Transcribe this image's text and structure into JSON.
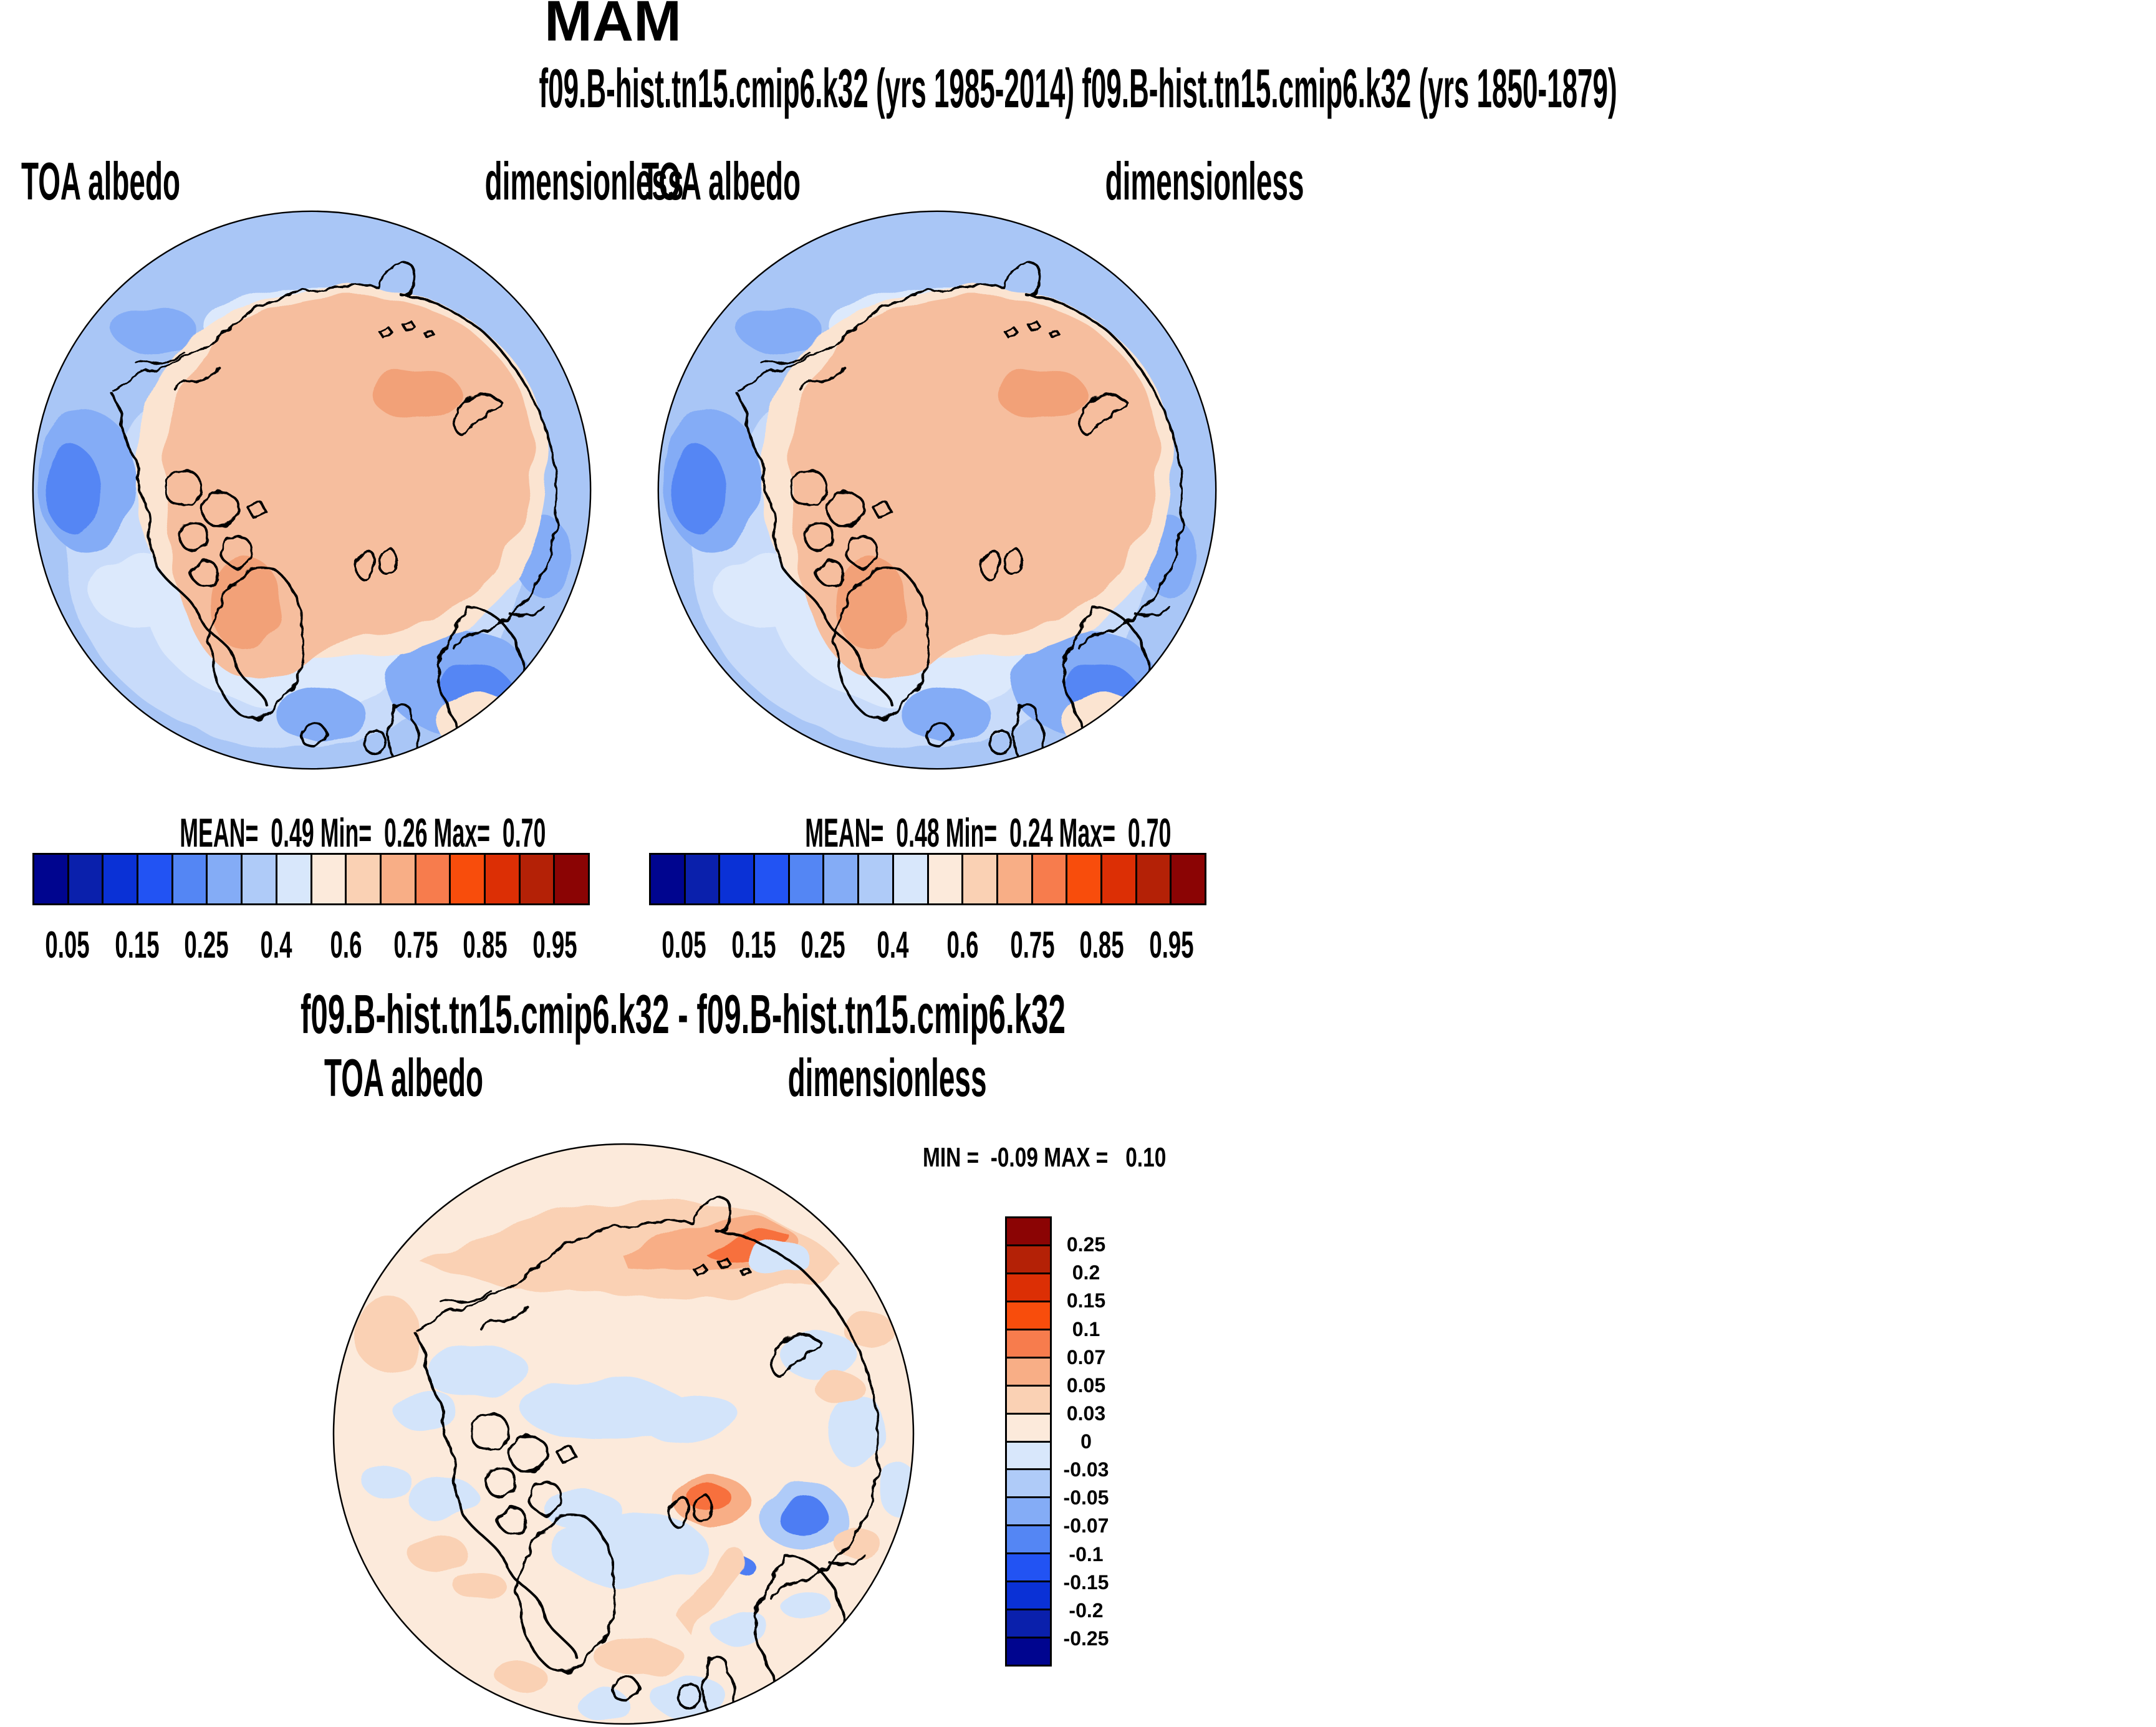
{
  "figure": {
    "season_title": "MAM",
    "subtitle": "f09.B-hist.tn15.cmip6.k32 (yrs 1985-2014) f09.B-hist.tn15.cmip6.k32 (yrs 1850-1879)",
    "diff_title": "f09.B-hist.tn15.cmip6.k32 - f09.B-hist.tn15.cmip6.k32"
  },
  "panels": {
    "case1": {
      "variable": "TOA albedo",
      "units": "dimensionless",
      "stats": "MEAN=  0.49 Min=  0.26 Max=  0.70",
      "mean": 0.49,
      "min": 0.26,
      "max": 0.7
    },
    "case2": {
      "variable": "TOA albedo",
      "units": "dimensionless",
      "stats": "MEAN=  0.48 Min=  0.24 Max=  0.70",
      "mean": 0.48,
      "min": 0.24,
      "max": 0.7
    },
    "diff": {
      "variable": "TOA albedo",
      "units": "dimensionless",
      "minmax": "MIN =  -0.09 MAX =   0.10",
      "min": -0.09,
      "max": 0.1
    }
  },
  "albedo_colorbar": {
    "colors": [
      "#00058F",
      "#0A20AC",
      "#0A31D6",
      "#2253F3",
      "#5486F4",
      "#84ACF6",
      "#AFCBF8",
      "#D8E7FB",
      "#FCEADB",
      "#FAD1B4",
      "#F8AE86",
      "#F77C4D",
      "#F84D0C",
      "#DC2F05",
      "#B42106",
      "#8B0404"
    ],
    "tick_labels": [
      "0.05",
      "0.15",
      "0.25",
      "0.4",
      "0.6",
      "0.75",
      "0.85",
      "0.95"
    ]
  },
  "diff_colorbar": {
    "colors": [
      "#8B0404",
      "#B42106",
      "#DC2F05",
      "#F84D0C",
      "#F77C4D",
      "#F8AE86",
      "#FAD1B4",
      "#FCEADB",
      "#D8E7FB",
      "#AFCBF8",
      "#84ACF6",
      "#5486F4",
      "#2253F3",
      "#0A31D6",
      "#0A20AC",
      "#00058F"
    ],
    "tick_labels": [
      "0.25",
      "0.2",
      "0.15",
      "0.1",
      "0.07",
      "0.05",
      "0.03",
      "0",
      "-0.03",
      "-0.05",
      "-0.07",
      "-0.1",
      "-0.15",
      "-0.2",
      "-0.25"
    ]
  },
  "chart_data": [
    {
      "type": "heatmap",
      "subtype": "north-polar-stereographic contour map",
      "title": "f09.B-hist.tn15.cmip6.k32 (yrs 1985-2014)",
      "season": "MAM",
      "variable": "TOA albedo",
      "units": "dimensionless",
      "stats": {
        "mean": 0.49,
        "min": 0.26,
        "max": 0.7
      },
      "contour_levels": [
        0.05,
        0.1,
        0.15,
        0.2,
        0.25,
        0.3,
        0.4,
        0.5,
        0.6,
        0.7,
        0.75,
        0.8,
        0.85,
        0.9,
        0.95
      ],
      "labeled_ticks": [
        0.05,
        0.15,
        0.25,
        0.4,
        0.6,
        0.75,
        0.85,
        0.95
      ],
      "palette": "16-band blue-to-red diverging",
      "legend_position": "horizontal bar below map",
      "description": "High albedo (salmon, ~0.55-0.7) over the central Arctic sea-ice cap and snow-covered land; lower albedo (blues, ~0.2-0.35) over open North Pacific and North Atlantic ocean."
    },
    {
      "type": "heatmap",
      "subtype": "north-polar-stereographic contour map",
      "title": "f09.B-hist.tn15.cmip6.k32 (yrs 1850-1879)",
      "season": "MAM",
      "variable": "TOA albedo",
      "units": "dimensionless",
      "stats": {
        "mean": 0.48,
        "min": 0.24,
        "max": 0.7
      },
      "contour_levels": [
        0.05,
        0.1,
        0.15,
        0.2,
        0.25,
        0.3,
        0.4,
        0.5,
        0.6,
        0.7,
        0.75,
        0.8,
        0.85,
        0.9,
        0.95
      ],
      "labeled_ticks": [
        0.05,
        0.15,
        0.25,
        0.4,
        0.6,
        0.75,
        0.85,
        0.95
      ],
      "palette": "16-band blue-to-red diverging",
      "legend_position": "horizontal bar below map",
      "description": "Nearly identical spatial pattern to the 1985-2014 panel."
    },
    {
      "type": "heatmap",
      "subtype": "north-polar-stereographic difference map",
      "title": "f09.B-hist.tn15.cmip6.k32 - f09.B-hist.tn15.cmip6.k32",
      "season": "MAM",
      "variable": "TOA albedo",
      "units": "dimensionless",
      "stats": {
        "min": -0.09,
        "max": 0.1
      },
      "contour_levels": [
        -0.25,
        -0.2,
        -0.15,
        -0.1,
        -0.07,
        -0.05,
        -0.03,
        0,
        0.03,
        0.05,
        0.07,
        0.1,
        0.15,
        0.2,
        0.25
      ],
      "palette": "16-band blue-to-red diverging",
      "legend_position": "vertical bar right of map",
      "description": "Differences mostly within +/-0.03 (pale peach/pale blue); positive band (~+0.05 to +0.1) along the Siberian Arctic coast and an orange spot (~+0.07) south of Svalbard; negative patch (~-0.1) in the Barents Sea east of Svalbard."
    }
  ]
}
